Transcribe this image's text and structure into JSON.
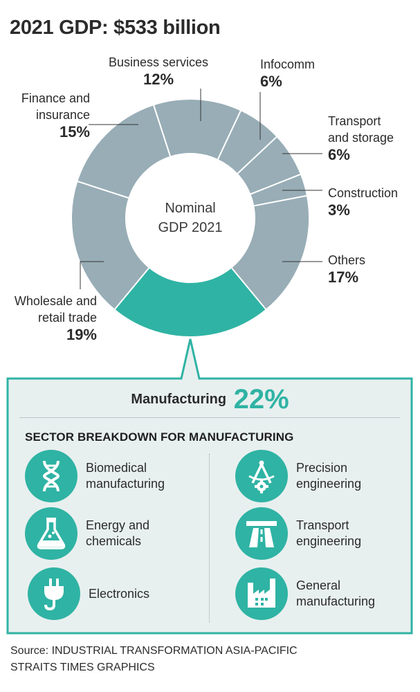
{
  "title": "2021 GDP: $533 billion",
  "chart_data": {
    "type": "pie",
    "title": "2021 GDP: $533 billion",
    "center_label": [
      "Nominal",
      "GDP 2021"
    ],
    "unit": "%",
    "slices": [
      {
        "label": "Business services",
        "value": 12,
        "pct_text": "12%"
      },
      {
        "label": "Infocomm",
        "value": 6,
        "pct_text": "6%"
      },
      {
        "label": "Transport and storage",
        "value": 6,
        "pct_text": "6%"
      },
      {
        "label": "Construction",
        "value": 3,
        "pct_text": "3%"
      },
      {
        "label": "Others",
        "value": 17,
        "pct_text": "17%"
      },
      {
        "label": "Manufacturing",
        "value": 22,
        "pct_text": "22%",
        "highlight": true
      },
      {
        "label": "Wholesale and retail trade",
        "value": 19,
        "pct_text": "19%"
      },
      {
        "label": "Finance and insurance",
        "value": 15,
        "pct_text": "15%"
      }
    ],
    "colors": {
      "slice": "#98adb6",
      "highlight": "#2fb3a4",
      "separator": "#ffffff",
      "box_fill": "#e8f0ef"
    }
  },
  "manufacturing": {
    "label": "Manufacturing",
    "pct": "22%",
    "breakdown_title": "SECTOR BREAKDOWN FOR MANUFACTURING",
    "items": [
      {
        "line1": "Biomedical",
        "line2": "manufacturing",
        "icon": "dna-icon"
      },
      {
        "line1": "Energy and",
        "line2": "chemicals",
        "icon": "flask-icon"
      },
      {
        "line1": "Electronics",
        "line2": "",
        "icon": "plug-icon"
      },
      {
        "line1": "Precision",
        "line2": "engineering",
        "icon": "compass-gear-icon"
      },
      {
        "line1": "Transport",
        "line2": "engineering",
        "icon": "highway-icon"
      },
      {
        "line1": "General",
        "line2": "manufacturing",
        "icon": "factory-icon"
      }
    ]
  },
  "source": {
    "line1": "Source: INDUSTRIAL TRANSFORMATION ASIA-PACIFIC",
    "line2": "STRAITS TIMES GRAPHICS"
  }
}
